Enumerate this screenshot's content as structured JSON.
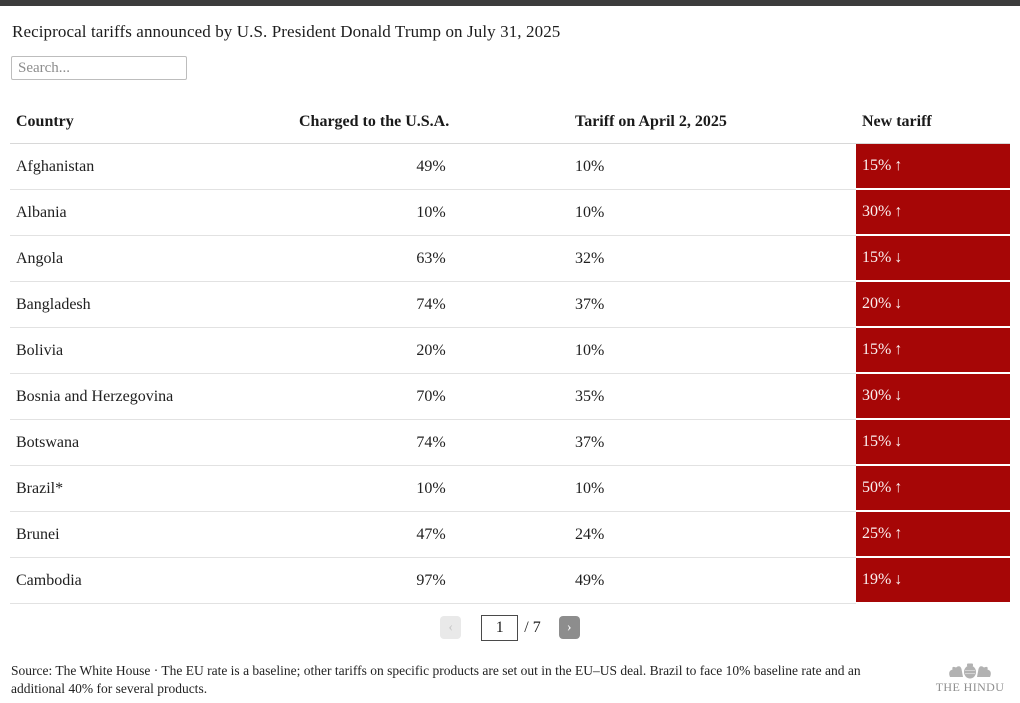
{
  "colors": {
    "accent_red": "#a60606",
    "top_bar": "#3c3c3c",
    "new_tariff_text": "#faf0f0"
  },
  "chart_data": {
    "type": "table",
    "title": "Reciprocal tariffs announced by U.S. President Donald Trump on July 31, 2025",
    "columns": [
      "Country",
      "Charged to the U.S.A.",
      "Tariff on April 2, 2025",
      "New tariff"
    ],
    "rows": [
      {
        "country": "Afghanistan",
        "charged": "49%",
        "april_2": "10%",
        "new_tariff": "15%",
        "arrow": "↑",
        "direction": "up"
      },
      {
        "country": "Albania",
        "charged": "10%",
        "april_2": "10%",
        "new_tariff": "30%",
        "arrow": "↑",
        "direction": "up"
      },
      {
        "country": "Angola",
        "charged": "63%",
        "april_2": "32%",
        "new_tariff": "15%",
        "arrow": "↓",
        "direction": "down"
      },
      {
        "country": "Bangladesh",
        "charged": "74%",
        "april_2": "37%",
        "new_tariff": "20%",
        "arrow": "↓",
        "direction": "down"
      },
      {
        "country": "Bolivia",
        "charged": "20%",
        "april_2": "10%",
        "new_tariff": "15%",
        "arrow": "↑",
        "direction": "up"
      },
      {
        "country": "Bosnia and Herzegovina",
        "charged": "70%",
        "april_2": "35%",
        "new_tariff": "30%",
        "arrow": "↓",
        "direction": "down"
      },
      {
        "country": "Botswana",
        "charged": "74%",
        "april_2": "37%",
        "new_tariff": "15%",
        "arrow": "↓",
        "direction": "down"
      },
      {
        "country": "Brazil*",
        "charged": "10%",
        "april_2": "10%",
        "new_tariff": "50%",
        "arrow": "↑",
        "direction": "up"
      },
      {
        "country": "Brunei",
        "charged": "47%",
        "april_2": "24%",
        "new_tariff": "25%",
        "arrow": "↑",
        "direction": "up"
      },
      {
        "country": "Cambodia",
        "charged": "97%",
        "april_2": "49%",
        "new_tariff": "19%",
        "arrow": "↓",
        "direction": "down"
      }
    ],
    "pagination": {
      "prev_icon": "‹",
      "current_page": "1",
      "total_label": "/ 7",
      "next_icon": "›"
    },
    "source_note": "Source: The White House · The EU rate is a baseline; other tariffs on specific products are set out in the EU–US deal. Brazil to face 10% baseline rate and an additional 40% for several products."
  },
  "search": {
    "placeholder": "Search..."
  },
  "logo": {
    "text": "THE HINDU"
  }
}
